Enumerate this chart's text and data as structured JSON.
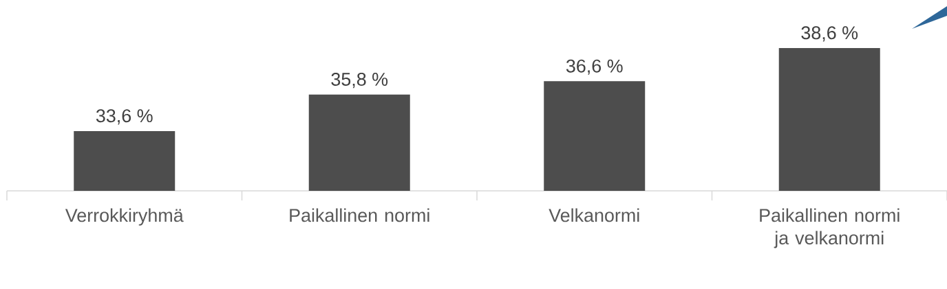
{
  "chart_data": {
    "type": "bar",
    "categories": [
      "Verrokkiryhmä",
      "Paikallinen normi",
      "Velkanormi",
      "Paikallinen normi ja velkanormi"
    ],
    "values": [
      33.6,
      35.8,
      36.6,
      38.6
    ],
    "value_labels": [
      "33,6 %",
      "35,8 %",
      "36,6 %",
      "38,6 %"
    ],
    "color": "#4d4d4d",
    "ylim": [
      30,
      38.6
    ]
  }
}
